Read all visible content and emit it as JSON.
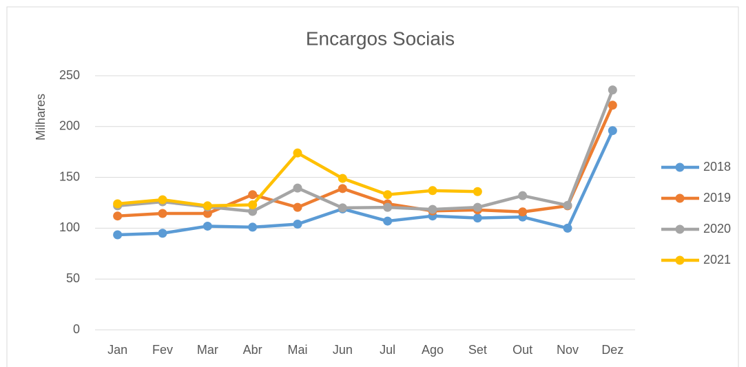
{
  "chart_data": {
    "type": "line",
    "title": "Encargos Sociais",
    "y_label": "Milhares",
    "categories": [
      "Jan",
      "Fev",
      "Mar",
      "Abr",
      "Mai",
      "Jun",
      "Jul",
      "Ago",
      "Set",
      "Out",
      "Nov",
      "Dez"
    ],
    "series": [
      {
        "name": "2018",
        "color": "#5b9bd5",
        "values": [
          93.5,
          95,
          102,
          101,
          104,
          119,
          107,
          112,
          110,
          111,
          100,
          196
        ]
      },
      {
        "name": "2019",
        "color": "#ed7d31",
        "values": [
          112,
          114.5,
          114.5,
          133,
          120.5,
          139,
          124,
          117,
          118,
          116,
          122,
          221
        ]
      },
      {
        "name": "2020",
        "color": "#a5a5a5",
        "values": [
          122,
          126,
          121,
          116.5,
          139.5,
          120,
          120.5,
          118.5,
          120.5,
          132,
          122.5,
          236
        ]
      },
      {
        "name": "2021",
        "color": "#ffc000",
        "values": [
          124,
          128,
          122,
          123,
          174,
          149,
          133,
          137,
          136,
          null,
          null,
          null
        ]
      }
    ],
    "ylim": [
      0,
      250
    ],
    "yticks": [
      0,
      50,
      100,
      150,
      200,
      250
    ],
    "grid": true,
    "legend": "right"
  }
}
